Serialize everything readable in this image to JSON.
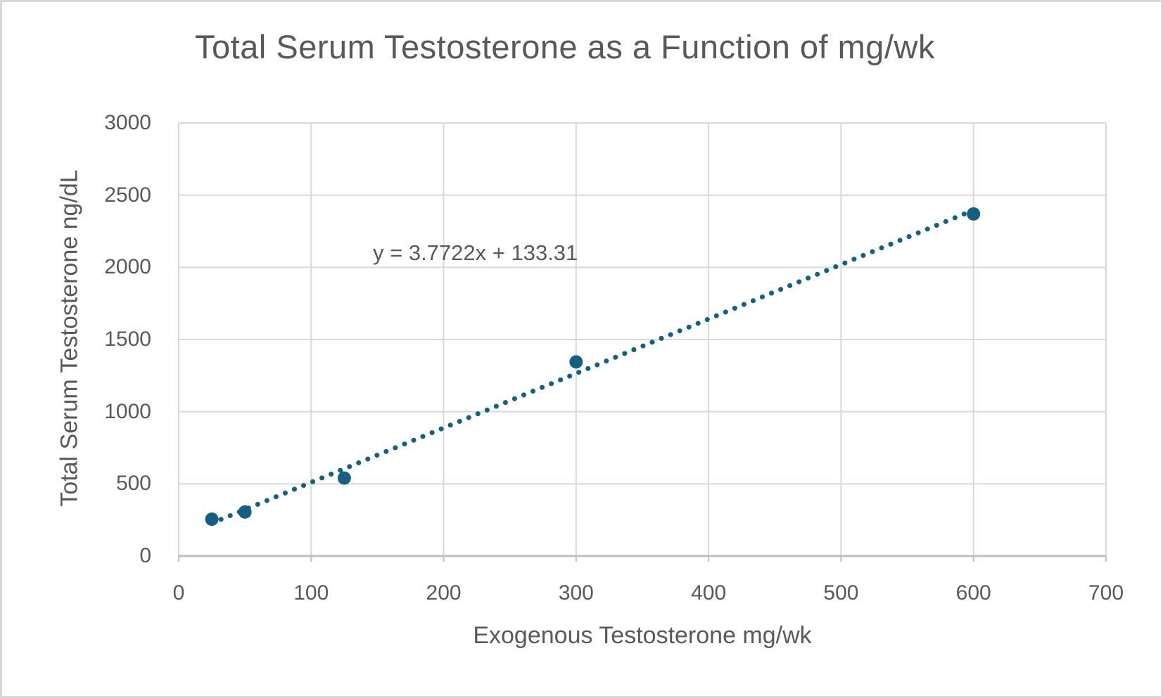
{
  "chart_data": {
    "type": "scatter",
    "title": "Total Serum Testosterone as a Function of mg/wk",
    "xlabel": "Exogenous Testosterone mg/wk",
    "ylabel": "Total Serum Testosterone ng/dL",
    "xlim": [
      0,
      700
    ],
    "ylim": [
      0,
      3000
    ],
    "xticks": [
      "0",
      "100",
      "200",
      "300",
      "400",
      "500",
      "600",
      "700"
    ],
    "yticks": [
      "0",
      "500",
      "1000",
      "1500",
      "2000",
      "2500",
      "3000"
    ],
    "grid": true,
    "legend_position": "none",
    "points": [
      {
        "x": 25,
        "y": 255
      },
      {
        "x": 50,
        "y": 305
      },
      {
        "x": 125,
        "y": 540
      },
      {
        "x": 300,
        "y": 1345
      },
      {
        "x": 600,
        "y": 2370
      }
    ],
    "trendline": {
      "type": "linear",
      "style": "dotted",
      "slope": 3.7722,
      "intercept": 133.31,
      "x_start": 25,
      "x_end": 600,
      "equation_label": "y = 3.7722x + 133.31"
    },
    "colors": {
      "series": "#156082",
      "text": "#595959",
      "gridline": "#d9d9d9",
      "axis_line": "#bfbfbf",
      "plot_background": "#ffffff",
      "border": "#d8d8d8"
    }
  }
}
